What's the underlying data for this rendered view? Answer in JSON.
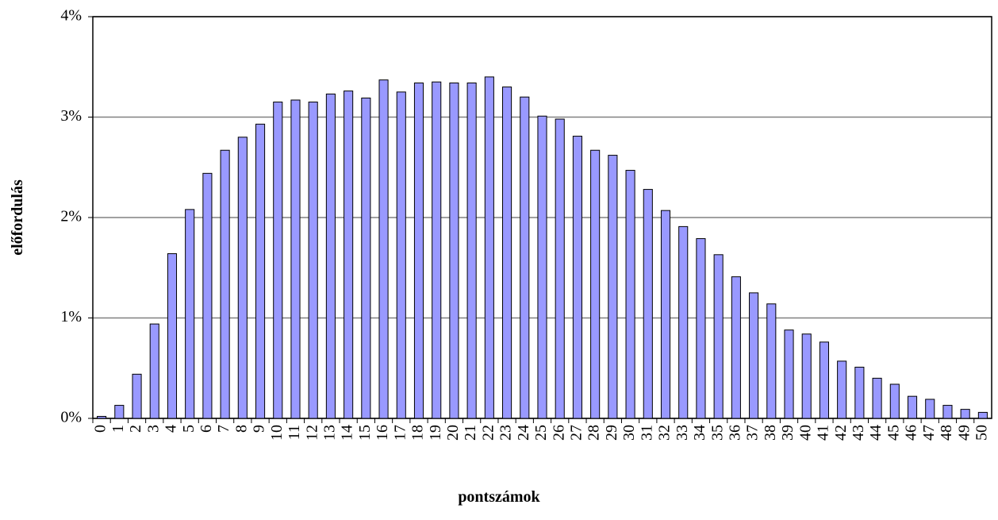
{
  "chart_data": {
    "type": "bar",
    "x_label": "pontszámok",
    "y_label": "előfordulás",
    "categories": [
      "0",
      "1",
      "2",
      "3",
      "4",
      "5",
      "6",
      "7",
      "8",
      "9",
      "10",
      "11",
      "12",
      "13",
      "14",
      "15",
      "16",
      "17",
      "18",
      "19",
      "20",
      "21",
      "22",
      "23",
      "24",
      "25",
      "26",
      "27",
      "28",
      "29",
      "30",
      "31",
      "32",
      "33",
      "34",
      "35",
      "36",
      "37",
      "38",
      "39",
      "40",
      "41",
      "42",
      "43",
      "44",
      "45",
      "46",
      "47",
      "48",
      "49",
      "50"
    ],
    "values": [
      0.02,
      0.13,
      0.44,
      0.94,
      1.64,
      2.08,
      2.44,
      2.67,
      2.8,
      2.93,
      3.15,
      3.17,
      3.15,
      3.23,
      3.26,
      3.19,
      3.37,
      3.25,
      3.34,
      3.35,
      3.34,
      3.34,
      3.4,
      3.3,
      3.2,
      3.01,
      2.98,
      2.81,
      2.67,
      2.62,
      2.47,
      2.28,
      2.07,
      1.91,
      1.79,
      1.63,
      1.41,
      1.25,
      1.14,
      0.88,
      0.84,
      0.76,
      0.57,
      0.51,
      0.4,
      0.34,
      0.22,
      0.19,
      0.13,
      0.09,
      0.06
    ],
    "color": "#9999ff",
    "ylim": [
      0,
      4
    ],
    "yticks": [
      {
        "value": 0,
        "label": "0%"
      },
      {
        "value": 1,
        "label": "1%"
      },
      {
        "value": 2,
        "label": "2%"
      },
      {
        "value": 3,
        "label": "3%"
      },
      {
        "value": 4,
        "label": "4%"
      }
    ],
    "grid": true
  }
}
